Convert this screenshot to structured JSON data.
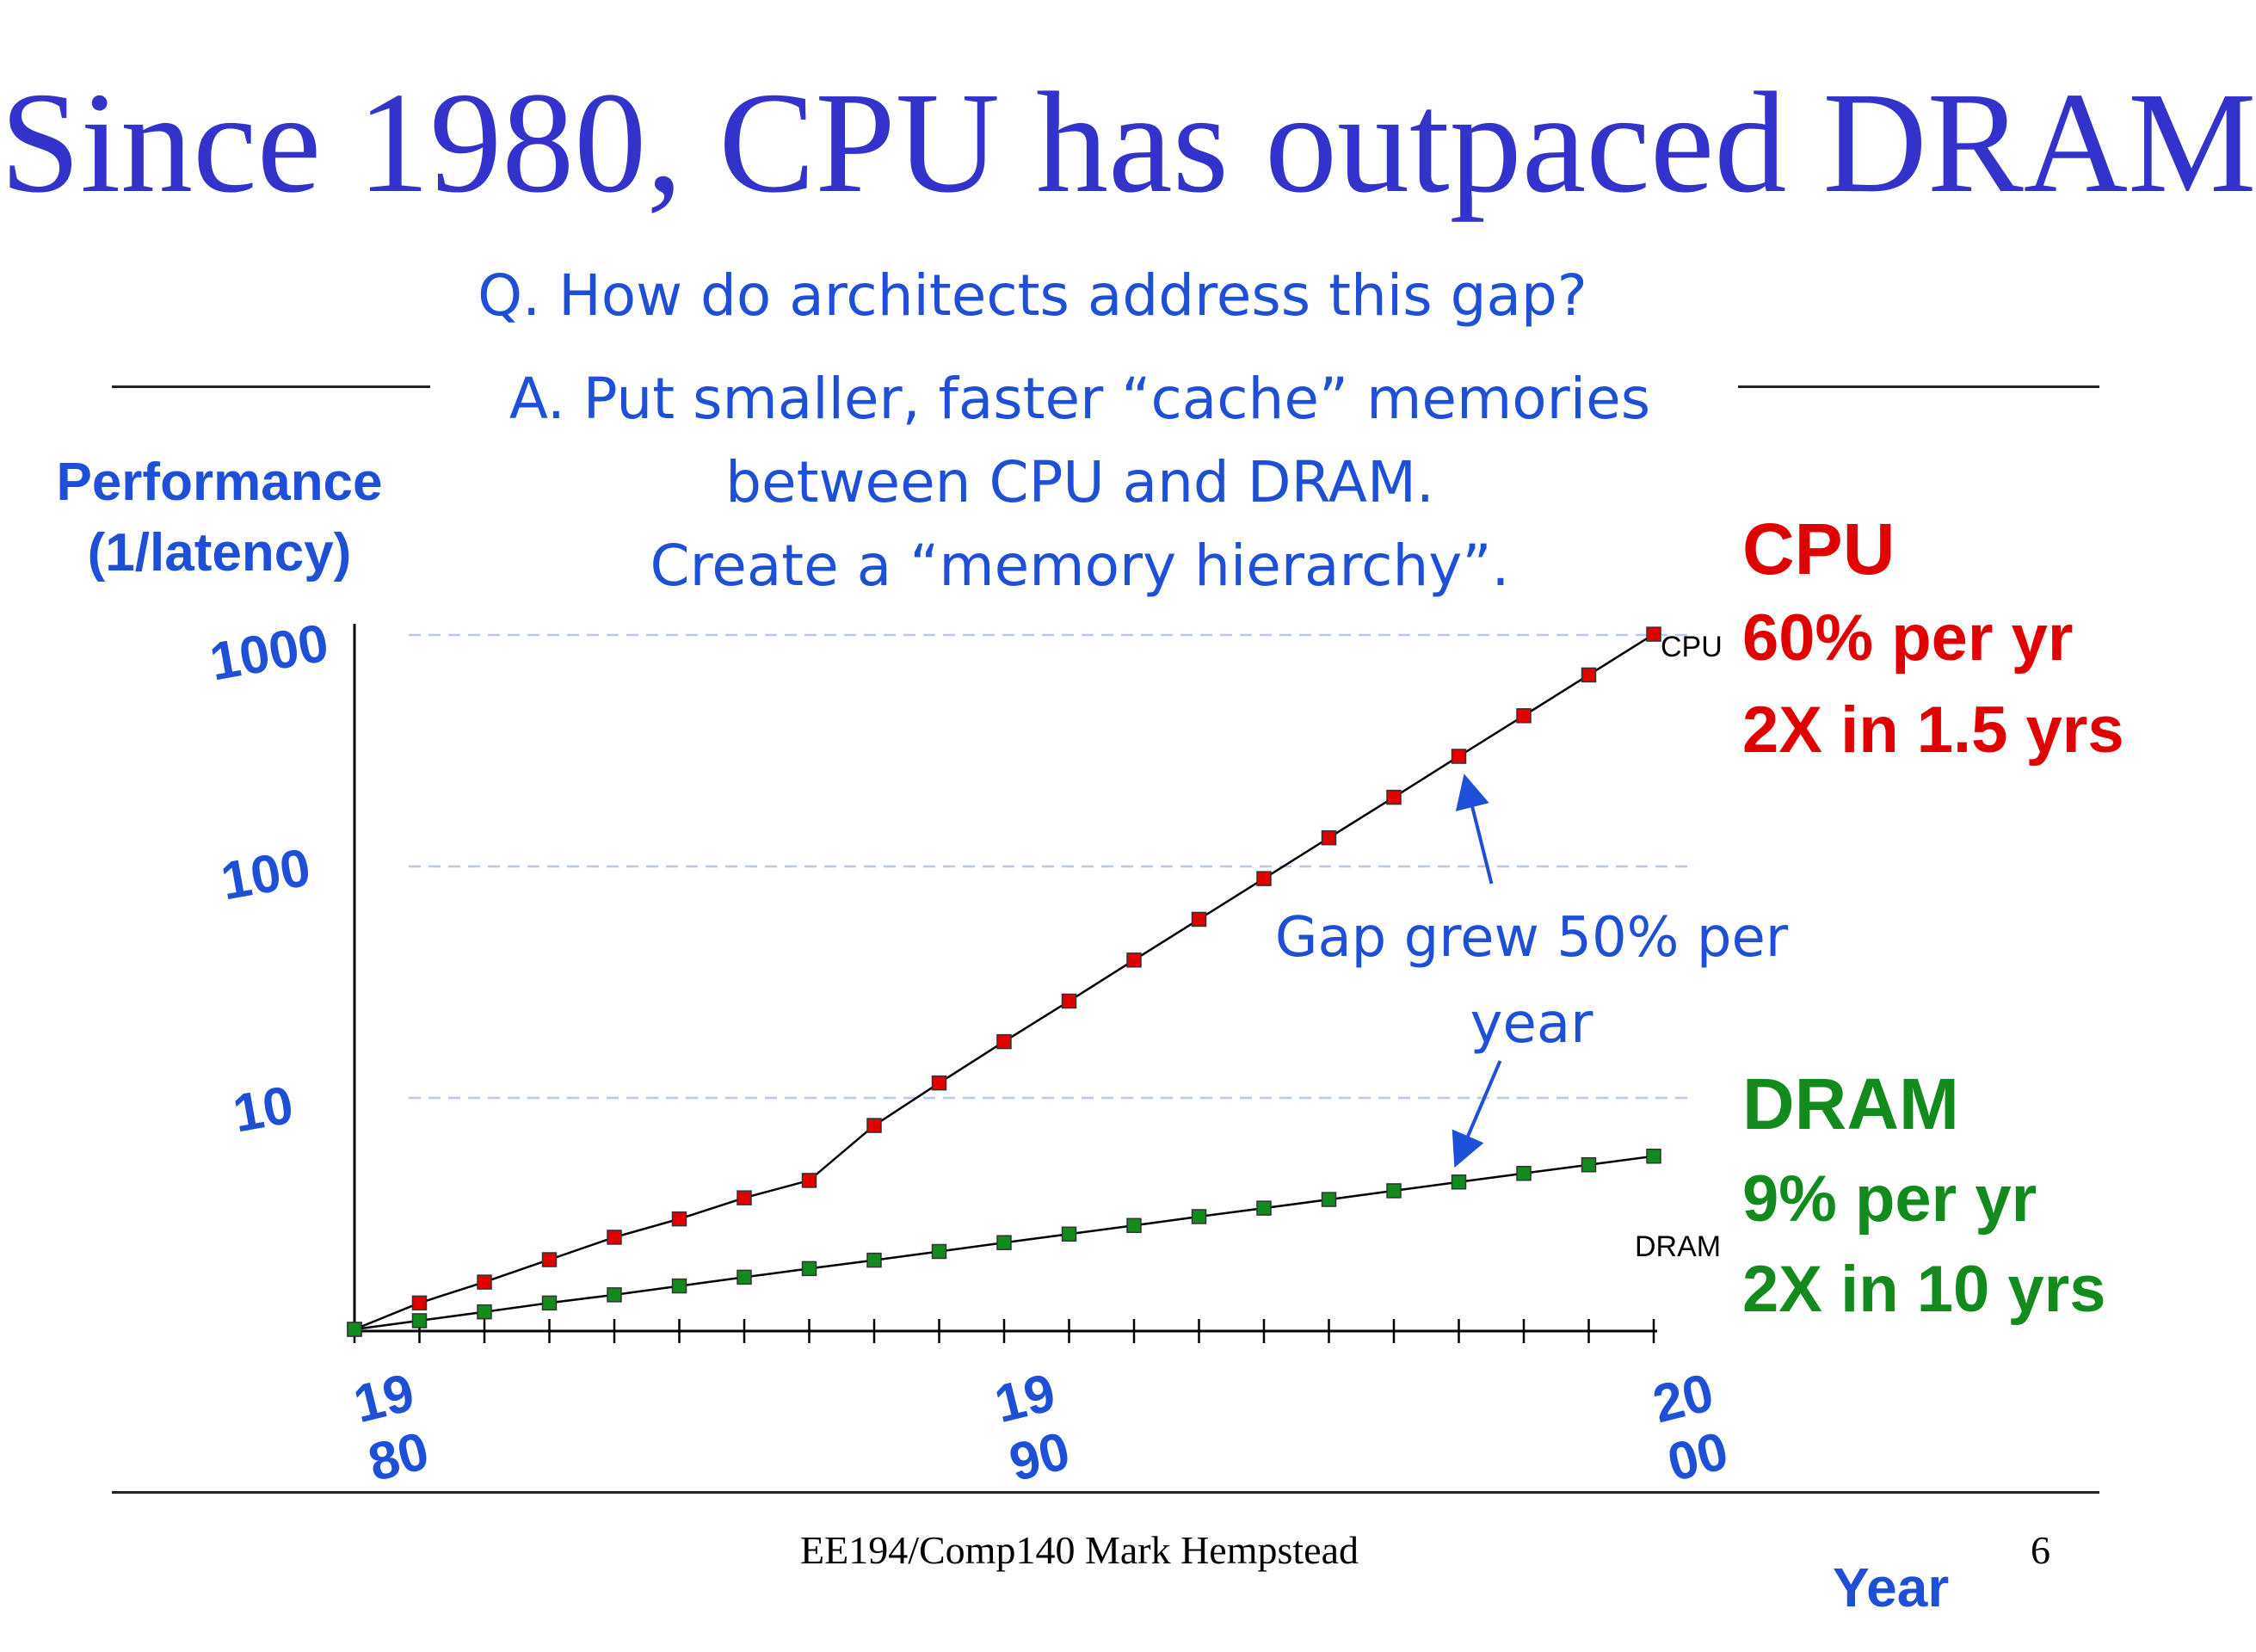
{
  "slide": {
    "title": "Since 1980, CPU has outpaced DRAM",
    "question": "Q. How do architects address this gap?",
    "answer_lines": [
      "A. Put smaller, faster “cache” memories",
      "between CPU and DRAM.",
      "Create a “memory hierarchy”."
    ],
    "footer": "EE194/Comp140 Mark Hempstead",
    "page_number": "6"
  },
  "annotations": {
    "cpu": {
      "title": "CPU",
      "line1": "60% per yr",
      "line2": "2X in 1.5 yrs",
      "color": "#e00000"
    },
    "dram": {
      "title": "DRAM",
      "line1": "9% per yr",
      "line2": "2X in 10 yrs",
      "color": "#138a1e"
    },
    "gap_lines": [
      "Gap grew 50% per",
      "year"
    ]
  },
  "chart_data": {
    "type": "line",
    "title": "",
    "ylabel_lines": [
      "Performance",
      "(1/latency)"
    ],
    "xlabel": "Year",
    "y_scale": "log",
    "ylim": [
      1,
      1000
    ],
    "xlim": [
      1980,
      2000
    ],
    "y_ticks": [
      {
        "value": 1000,
        "label": "1000"
      },
      {
        "value": 100,
        "label": "100"
      },
      {
        "value": 10,
        "label": "10"
      }
    ],
    "x_ticks": [
      {
        "value": 1980,
        "lines": [
          "19",
          "80"
        ]
      },
      {
        "value": 1990,
        "lines": [
          "19",
          "90"
        ]
      },
      {
        "value": 2000,
        "lines": [
          "20",
          "00"
        ]
      }
    ],
    "grid": "dashed at 10, 100, 1000",
    "x": [
      1980,
      1981,
      1982,
      1983,
      1984,
      1985,
      1986,
      1987,
      1988,
      1989,
      1990,
      1991,
      1992,
      1993,
      1994,
      1995,
      1996,
      1997,
      1998,
      1999,
      2000
    ],
    "series": [
      {
        "name": "CPU",
        "color": "#e00000",
        "values": [
          1,
          1.3,
          1.6,
          2.0,
          2.5,
          3.0,
          3.7,
          4.4,
          7.6,
          11.6,
          17.5,
          26.2,
          39.4,
          59.1,
          88.6,
          133,
          199,
          299,
          448,
          672,
          1008
        ]
      },
      {
        "name": "DRAM",
        "color": "#138a1e",
        "values": [
          1,
          1.09,
          1.19,
          1.3,
          1.41,
          1.54,
          1.68,
          1.83,
          1.99,
          2.17,
          2.37,
          2.58,
          2.81,
          3.07,
          3.34,
          3.64,
          3.97,
          4.33,
          4.72,
          5.14,
          5.6
        ]
      }
    ]
  }
}
